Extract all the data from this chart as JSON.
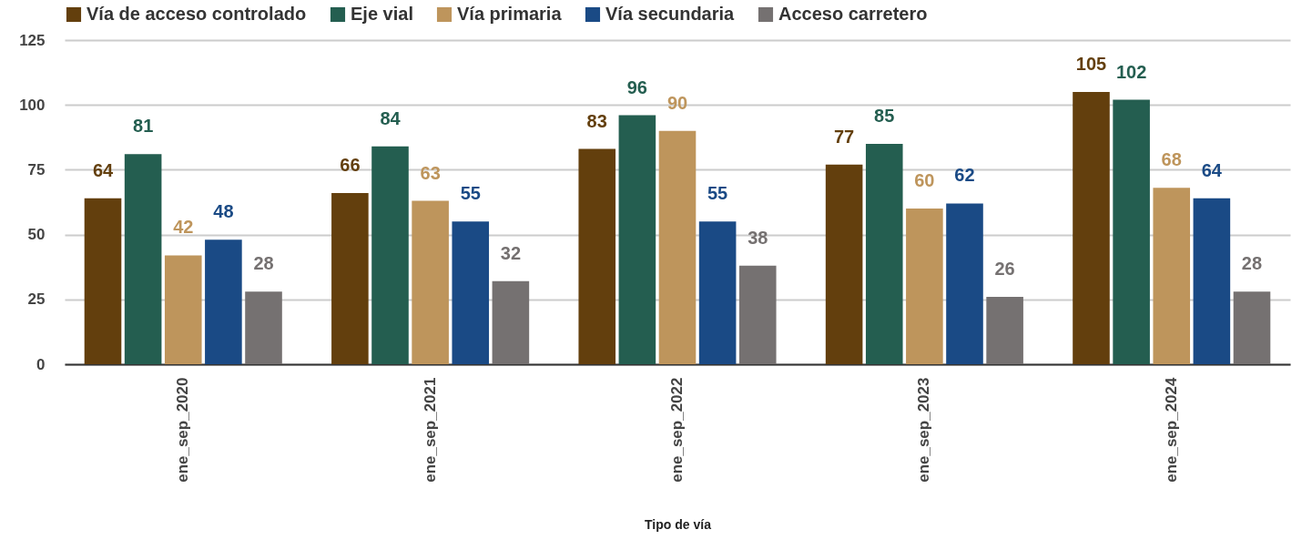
{
  "chart_data": {
    "type": "bar",
    "xlabel": "Tipo de vía",
    "categories": [
      "ene_sep_2020",
      "ene_sep_2021",
      "ene_sep_2022",
      "ene_sep_2023",
      "ene_sep_2024"
    ],
    "series": [
      {
        "name": "Vía de acceso controlado",
        "color": "#633f0d",
        "values": [
          64,
          66,
          83,
          77,
          105
        ]
      },
      {
        "name": "Eje vial",
        "color": "#245e50",
        "values": [
          81,
          84,
          96,
          85,
          102
        ]
      },
      {
        "name": "Vía primaria",
        "color": "#be955c",
        "values": [
          42,
          63,
          90,
          60,
          68
        ]
      },
      {
        "name": "Vía secundaria",
        "color": "#1a4a85",
        "values": [
          48,
          55,
          55,
          62,
          64
        ]
      },
      {
        "name": "Acceso carretero",
        "color": "#757171",
        "values": [
          28,
          32,
          38,
          26,
          28
        ]
      }
    ],
    "ylim": [
      0,
      125
    ],
    "yticks": [
      0,
      25,
      50,
      75,
      100,
      125
    ],
    "grid": "y",
    "legend": "top",
    "data_labels": true
  }
}
